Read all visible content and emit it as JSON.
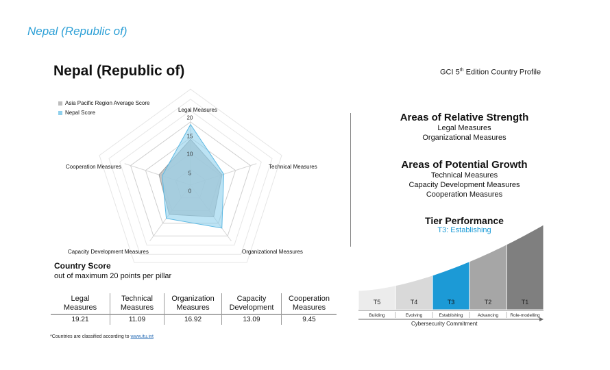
{
  "slide_title": "Nepal (Republic of)",
  "header": {
    "title": "Nepal (Republic of)",
    "edition_prefix": "GCI 5",
    "edition_sup": "th",
    "edition_suffix": " Edition Country Profile"
  },
  "chart_data": {
    "type": "radar",
    "title": "",
    "axes": [
      "Legal Measures",
      "Technical Measures",
      "Organizational Measures",
      "Capacity Development Measures",
      "Cooperation Measures"
    ],
    "ticks": [
      "0",
      "5",
      "10",
      "15",
      "20"
    ],
    "range": [
      0,
      20
    ],
    "series": [
      {
        "name": "Asia Pacific Region Average Score",
        "values": [
          14.5,
          10.5,
          12.5,
          11.5,
          10.5
        ],
        "color": "#bdbdbd"
      },
      {
        "name": "Nepal Score",
        "values": [
          19.21,
          11.09,
          16.92,
          13.09,
          9.45
        ],
        "color": "#8fd0ec"
      }
    ],
    "legend_position": "top-left"
  },
  "country_score": {
    "heading": "Country Score",
    "subheading": "out of maximum 20 points per pillar",
    "columns": [
      {
        "line1": "Legal",
        "line2": "Measures",
        "value": "19.21"
      },
      {
        "line1": "Technical",
        "line2": "Measures",
        "value": "11.09"
      },
      {
        "line1": "Organization",
        "line2": "Measures",
        "value": "16.92"
      },
      {
        "line1": "Capacity",
        "line2": "Development",
        "value": "13.09"
      },
      {
        "line1": "Cooperation",
        "line2": "Measures",
        "value": "9.45"
      }
    ]
  },
  "footnote": {
    "text": "*Countries are classified according to ",
    "link": "www.itu.int"
  },
  "strength": {
    "heading": "Areas of Relative Strength",
    "items": [
      "Legal Measures",
      "Organizational Measures"
    ]
  },
  "growth": {
    "heading": "Areas of Potential Growth",
    "items": [
      "Technical Measures",
      "Capacity Development Measures",
      "Cooperation Measures"
    ]
  },
  "tier": {
    "heading": "Tier Performance",
    "current": "T3: Establishing",
    "tiers": [
      {
        "code": "T5",
        "name": "Building",
        "color": "#ececec"
      },
      {
        "code": "T4",
        "name": "Evolving",
        "color": "#d9d9d9"
      },
      {
        "code": "T3",
        "name": "Establishing",
        "color": "#1c9ad6"
      },
      {
        "code": "T2",
        "name": "Advancing",
        "color": "#a6a6a6"
      },
      {
        "code": "T1",
        "name": "Role-modelling",
        "color": "#7f7f7f"
      }
    ],
    "axis_label": "Cybersecurity Commitment"
  }
}
